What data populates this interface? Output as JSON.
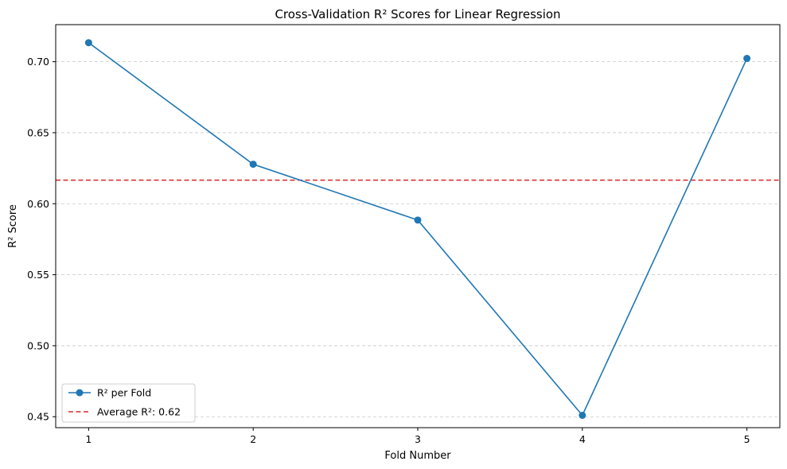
{
  "colors": {
    "series": "#1f77b4",
    "average": "#d62728",
    "grid": "#b0b0b0",
    "legend_border": "#cccccc"
  },
  "chart_data": {
    "type": "line",
    "title": "Cross-Validation R² Scores for Linear Regression",
    "xlabel": "Fold Number",
    "ylabel": "R² Score",
    "x": [
      1,
      2,
      3,
      4,
      5
    ],
    "x_tick_labels": [
      "1",
      "2",
      "3",
      "4",
      "5"
    ],
    "xlim": [
      0.8,
      5.2
    ],
    "ylim": [
      0.4423,
      0.7261
    ],
    "y_ticks": [
      0.45,
      0.5,
      0.55,
      0.6,
      0.65,
      0.7
    ],
    "y_tick_labels": [
      "0.45",
      "0.50",
      "0.55",
      "0.60",
      "0.65",
      "0.70"
    ],
    "grid": "horizontal dashed",
    "legend_position": "lower-left",
    "series": [
      {
        "name": "R² per Fold",
        "values": [
          0.7134,
          0.6278,
          0.5885,
          0.451,
          0.7023
        ],
        "style": "solid line with circle markers"
      }
    ],
    "reference_lines": [
      {
        "name": "Average R²: 0.62",
        "y": 0.6166,
        "style": "dashed"
      }
    ]
  }
}
